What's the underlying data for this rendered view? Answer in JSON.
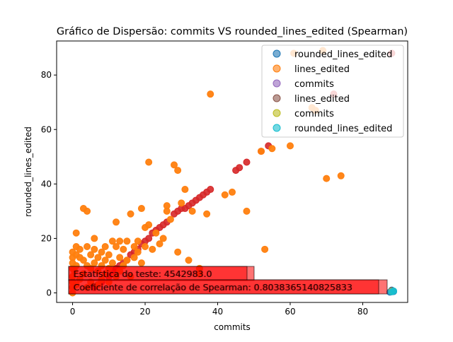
{
  "chart_data": {
    "type": "scatter",
    "title": "Gráfico de Dispersão: commits VS rounded_lines_edited (Spearman)",
    "xlabel": "commits",
    "ylabel": "rounded_lines_edited",
    "xlim": [
      -4.4,
      92.4
    ],
    "ylim": [
      -3.5,
      92.5
    ],
    "xticks": [
      0,
      20,
      40,
      60,
      80
    ],
    "yticks": [
      0,
      20,
      40,
      60,
      80
    ],
    "grid": false,
    "legend_position": "top-right",
    "series": [
      {
        "name": "rounded_lines_edited",
        "color": "#1f77b4",
        "points": [
          [
            88,
            1
          ],
          [
            88.5,
            0.5
          ],
          [
            87.5,
            0.3
          ]
        ]
      },
      {
        "name": "lines_edited",
        "color": "#ff7f0e",
        "points": [
          [
            0,
            0
          ],
          [
            0,
            2
          ],
          [
            0,
            4
          ],
          [
            0,
            6
          ],
          [
            0,
            9
          ],
          [
            0,
            11
          ],
          [
            0,
            13
          ],
          [
            0,
            15
          ],
          [
            0.5,
            8
          ],
          [
            1,
            3
          ],
          [
            1,
            10
          ],
          [
            1,
            14
          ],
          [
            1,
            17
          ],
          [
            1,
            22
          ],
          [
            2,
            5
          ],
          [
            2,
            13
          ],
          [
            2,
            16
          ],
          [
            3,
            7
          ],
          [
            3,
            12
          ],
          [
            3,
            31
          ],
          [
            4,
            2
          ],
          [
            4,
            10
          ],
          [
            4,
            17
          ],
          [
            4,
            30
          ],
          [
            5,
            4
          ],
          [
            5,
            9
          ],
          [
            5,
            14
          ],
          [
            6,
            11
          ],
          [
            6,
            16
          ],
          [
            6,
            20
          ],
          [
            7,
            3
          ],
          [
            7,
            8
          ],
          [
            7,
            13
          ],
          [
            8,
            5
          ],
          [
            8,
            10
          ],
          [
            8,
            15
          ],
          [
            9,
            7
          ],
          [
            9,
            12
          ],
          [
            9,
            17
          ],
          [
            10,
            4
          ],
          [
            10,
            9
          ],
          [
            10,
            14
          ],
          [
            11,
            11
          ],
          [
            11,
            19
          ],
          [
            12,
            6
          ],
          [
            12,
            17
          ],
          [
            12,
            26
          ],
          [
            13,
            8
          ],
          [
            13,
            13
          ],
          [
            13,
            19
          ],
          [
            14,
            10
          ],
          [
            14,
            16
          ],
          [
            15,
            12
          ],
          [
            15,
            19
          ],
          [
            16,
            6
          ],
          [
            16,
            29
          ],
          [
            17,
            13
          ],
          [
            17,
            17
          ],
          [
            18,
            15
          ],
          [
            18,
            19
          ],
          [
            19,
            11
          ],
          [
            19,
            31
          ],
          [
            20,
            17
          ],
          [
            20,
            24
          ],
          [
            21,
            25
          ],
          [
            21,
            48
          ],
          [
            22,
            16
          ],
          [
            23,
            22
          ],
          [
            24,
            18
          ],
          [
            25,
            20
          ],
          [
            26,
            30
          ],
          [
            26,
            32
          ],
          [
            27,
            27
          ],
          [
            28,
            47
          ],
          [
            29,
            15
          ],
          [
            29,
            45
          ],
          [
            30,
            33
          ],
          [
            31,
            38
          ],
          [
            32,
            12
          ],
          [
            33,
            30
          ],
          [
            35,
            7
          ],
          [
            35,
            9
          ],
          [
            37,
            29
          ],
          [
            38,
            73
          ],
          [
            42,
            36
          ],
          [
            44,
            37
          ],
          [
            48,
            30
          ],
          [
            52,
            52
          ],
          [
            53,
            16
          ],
          [
            55,
            53
          ],
          [
            60,
            54
          ],
          [
            66,
            68
          ],
          [
            69,
            89
          ],
          [
            70,
            42
          ],
          [
            74,
            43
          ],
          [
            61,
            88
          ],
          [
            67,
            67
          ]
        ]
      },
      {
        "name": "commits",
        "color": "#9467bd",
        "points": [
          [
            88,
            0.5
          ]
        ]
      },
      {
        "name": "lines_edited",
        "color": "#8c564b",
        "points": [
          [
            88,
            0.8
          ]
        ]
      },
      {
        "name": "commits",
        "color": "#bcbd22",
        "points": [
          [
            88,
            0.6
          ]
        ]
      },
      {
        "name": "rounded_lines_edited",
        "color": "#17becf",
        "points": [
          [
            88,
            0.4
          ],
          [
            88.5,
            0.7
          ]
        ]
      },
      {
        "name": "",
        "color": "#d62728",
        "points": [
          [
            6,
            2
          ],
          [
            8,
            4
          ],
          [
            10,
            6
          ],
          [
            11,
            8
          ],
          [
            12,
            9
          ],
          [
            13,
            10
          ],
          [
            14,
            11
          ],
          [
            15,
            12
          ],
          [
            16,
            14
          ],
          [
            17,
            15
          ],
          [
            18,
            16
          ],
          [
            19,
            18
          ],
          [
            20,
            19
          ],
          [
            21,
            20
          ],
          [
            22,
            22
          ],
          [
            23,
            23
          ],
          [
            24,
            24
          ],
          [
            25,
            25
          ],
          [
            26,
            26
          ],
          [
            28,
            29
          ],
          [
            29,
            30
          ],
          [
            30,
            31
          ],
          [
            31,
            31
          ],
          [
            32,
            32
          ],
          [
            33,
            33
          ],
          [
            34,
            34
          ],
          [
            35,
            35
          ],
          [
            36,
            36
          ],
          [
            37,
            37
          ],
          [
            38,
            38
          ],
          [
            45,
            45
          ],
          [
            46,
            46
          ],
          [
            48,
            48
          ],
          [
            52,
            52
          ],
          [
            54,
            54
          ],
          [
            72,
            73
          ],
          [
            88,
            88
          ]
        ]
      }
    ],
    "annotations": [
      {
        "text": "Estatística do teste: 4542983.0",
        "color": "#ff0000"
      },
      {
        "text": "Estatística do teste: 4542983.0",
        "color": "#ff0000"
      },
      {
        "text": "Coeficiente de correlação de Spearman: 0.8038365140825833",
        "color": "#ff0000"
      },
      {
        "text": "Coeficiente de correlação de Spearman: 0.8038365140825833",
        "color": "#ff0000"
      }
    ]
  }
}
